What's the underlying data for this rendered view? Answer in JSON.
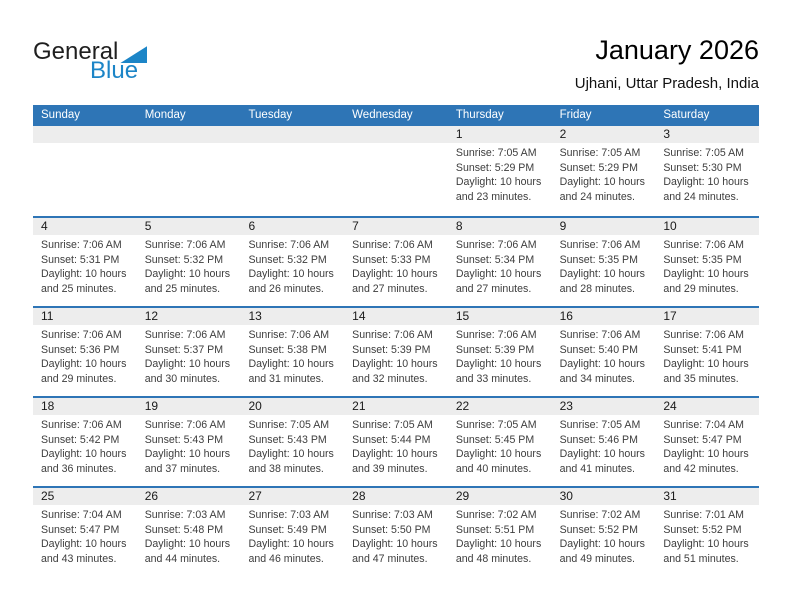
{
  "logo": {
    "part1": "General",
    "part2": "Blue"
  },
  "title": "January 2026",
  "subtitle": "Ujhani, Uttar Pradesh, India",
  "colors": {
    "header_bg": "#2e75b6",
    "week_separator": "#2e75b6",
    "day_band_bg": "#ededed",
    "logo_blue": "#1c85c7",
    "weekday_text": "#ffffff"
  },
  "weekdays": [
    "Sunday",
    "Monday",
    "Tuesday",
    "Wednesday",
    "Thursday",
    "Friday",
    "Saturday"
  ],
  "weeks": [
    [
      null,
      null,
      null,
      null,
      {
        "day": "1",
        "sunrise": "Sunrise: 7:05 AM",
        "sunset": "Sunset: 5:29 PM",
        "daylight": "Daylight: 10 hours and 23 minutes."
      },
      {
        "day": "2",
        "sunrise": "Sunrise: 7:05 AM",
        "sunset": "Sunset: 5:29 PM",
        "daylight": "Daylight: 10 hours and 24 minutes."
      },
      {
        "day": "3",
        "sunrise": "Sunrise: 7:05 AM",
        "sunset": "Sunset: 5:30 PM",
        "daylight": "Daylight: 10 hours and 24 minutes."
      }
    ],
    [
      {
        "day": "4",
        "sunrise": "Sunrise: 7:06 AM",
        "sunset": "Sunset: 5:31 PM",
        "daylight": "Daylight: 10 hours and 25 minutes."
      },
      {
        "day": "5",
        "sunrise": "Sunrise: 7:06 AM",
        "sunset": "Sunset: 5:32 PM",
        "daylight": "Daylight: 10 hours and 25 minutes."
      },
      {
        "day": "6",
        "sunrise": "Sunrise: 7:06 AM",
        "sunset": "Sunset: 5:32 PM",
        "daylight": "Daylight: 10 hours and 26 minutes."
      },
      {
        "day": "7",
        "sunrise": "Sunrise: 7:06 AM",
        "sunset": "Sunset: 5:33 PM",
        "daylight": "Daylight: 10 hours and 27 minutes."
      },
      {
        "day": "8",
        "sunrise": "Sunrise: 7:06 AM",
        "sunset": "Sunset: 5:34 PM",
        "daylight": "Daylight: 10 hours and 27 minutes."
      },
      {
        "day": "9",
        "sunrise": "Sunrise: 7:06 AM",
        "sunset": "Sunset: 5:35 PM",
        "daylight": "Daylight: 10 hours and 28 minutes."
      },
      {
        "day": "10",
        "sunrise": "Sunrise: 7:06 AM",
        "sunset": "Sunset: 5:35 PM",
        "daylight": "Daylight: 10 hours and 29 minutes."
      }
    ],
    [
      {
        "day": "11",
        "sunrise": "Sunrise: 7:06 AM",
        "sunset": "Sunset: 5:36 PM",
        "daylight": "Daylight: 10 hours and 29 minutes."
      },
      {
        "day": "12",
        "sunrise": "Sunrise: 7:06 AM",
        "sunset": "Sunset: 5:37 PM",
        "daylight": "Daylight: 10 hours and 30 minutes."
      },
      {
        "day": "13",
        "sunrise": "Sunrise: 7:06 AM",
        "sunset": "Sunset: 5:38 PM",
        "daylight": "Daylight: 10 hours and 31 minutes."
      },
      {
        "day": "14",
        "sunrise": "Sunrise: 7:06 AM",
        "sunset": "Sunset: 5:39 PM",
        "daylight": "Daylight: 10 hours and 32 minutes."
      },
      {
        "day": "15",
        "sunrise": "Sunrise: 7:06 AM",
        "sunset": "Sunset: 5:39 PM",
        "daylight": "Daylight: 10 hours and 33 minutes."
      },
      {
        "day": "16",
        "sunrise": "Sunrise: 7:06 AM",
        "sunset": "Sunset: 5:40 PM",
        "daylight": "Daylight: 10 hours and 34 minutes."
      },
      {
        "day": "17",
        "sunrise": "Sunrise: 7:06 AM",
        "sunset": "Sunset: 5:41 PM",
        "daylight": "Daylight: 10 hours and 35 minutes."
      }
    ],
    [
      {
        "day": "18",
        "sunrise": "Sunrise: 7:06 AM",
        "sunset": "Sunset: 5:42 PM",
        "daylight": "Daylight: 10 hours and 36 minutes."
      },
      {
        "day": "19",
        "sunrise": "Sunrise: 7:06 AM",
        "sunset": "Sunset: 5:43 PM",
        "daylight": "Daylight: 10 hours and 37 minutes."
      },
      {
        "day": "20",
        "sunrise": "Sunrise: 7:05 AM",
        "sunset": "Sunset: 5:43 PM",
        "daylight": "Daylight: 10 hours and 38 minutes."
      },
      {
        "day": "21",
        "sunrise": "Sunrise: 7:05 AM",
        "sunset": "Sunset: 5:44 PM",
        "daylight": "Daylight: 10 hours and 39 minutes."
      },
      {
        "day": "22",
        "sunrise": "Sunrise: 7:05 AM",
        "sunset": "Sunset: 5:45 PM",
        "daylight": "Daylight: 10 hours and 40 minutes."
      },
      {
        "day": "23",
        "sunrise": "Sunrise: 7:05 AM",
        "sunset": "Sunset: 5:46 PM",
        "daylight": "Daylight: 10 hours and 41 minutes."
      },
      {
        "day": "24",
        "sunrise": "Sunrise: 7:04 AM",
        "sunset": "Sunset: 5:47 PM",
        "daylight": "Daylight: 10 hours and 42 minutes."
      }
    ],
    [
      {
        "day": "25",
        "sunrise": "Sunrise: 7:04 AM",
        "sunset": "Sunset: 5:47 PM",
        "daylight": "Daylight: 10 hours and 43 minutes."
      },
      {
        "day": "26",
        "sunrise": "Sunrise: 7:03 AM",
        "sunset": "Sunset: 5:48 PM",
        "daylight": "Daylight: 10 hours and 44 minutes."
      },
      {
        "day": "27",
        "sunrise": "Sunrise: 7:03 AM",
        "sunset": "Sunset: 5:49 PM",
        "daylight": "Daylight: 10 hours and 46 minutes."
      },
      {
        "day": "28",
        "sunrise": "Sunrise: 7:03 AM",
        "sunset": "Sunset: 5:50 PM",
        "daylight": "Daylight: 10 hours and 47 minutes."
      },
      {
        "day": "29",
        "sunrise": "Sunrise: 7:02 AM",
        "sunset": "Sunset: 5:51 PM",
        "daylight": "Daylight: 10 hours and 48 minutes."
      },
      {
        "day": "30",
        "sunrise": "Sunrise: 7:02 AM",
        "sunset": "Sunset: 5:52 PM",
        "daylight": "Daylight: 10 hours and 49 minutes."
      },
      {
        "day": "31",
        "sunrise": "Sunrise: 7:01 AM",
        "sunset": "Sunset: 5:52 PM",
        "daylight": "Daylight: 10 hours and 51 minutes."
      }
    ]
  ]
}
